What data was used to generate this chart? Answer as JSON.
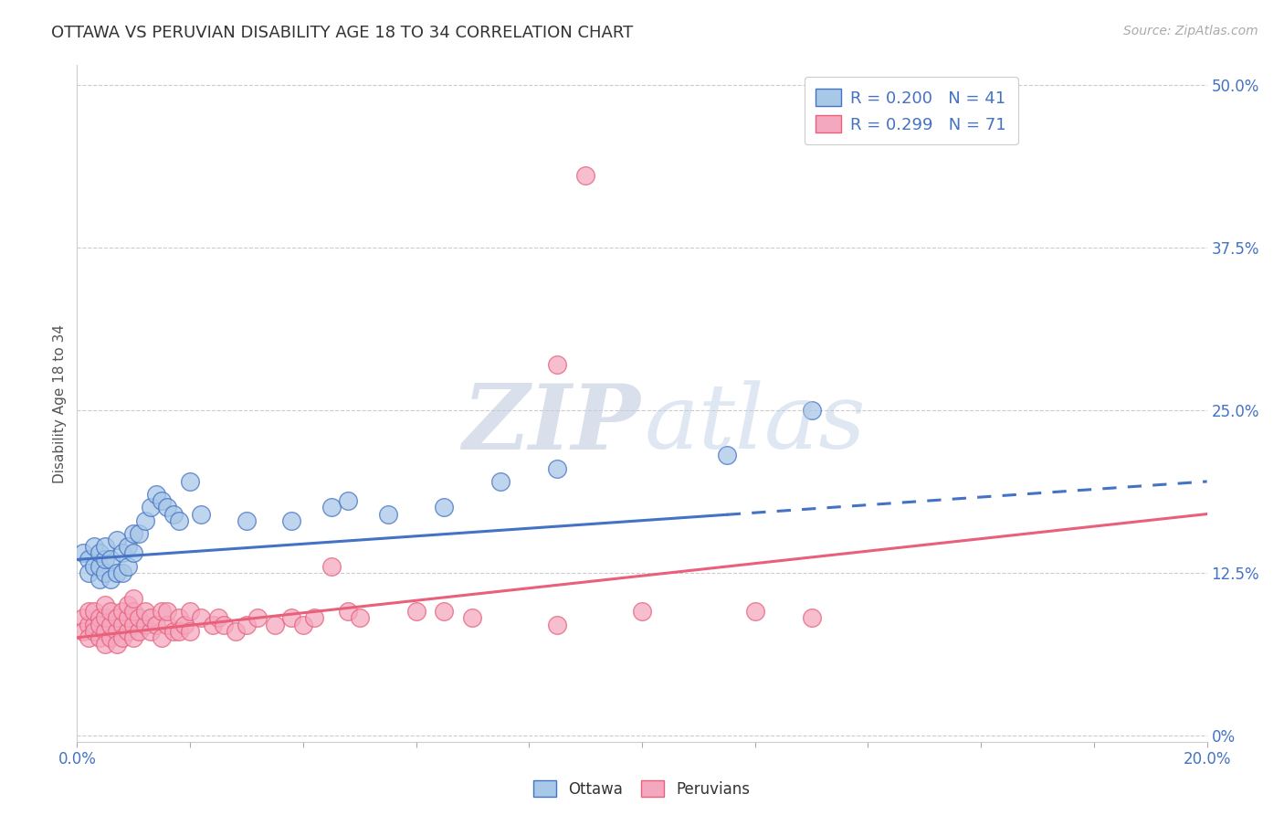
{
  "title": "OTTAWA VS PERUVIAN DISABILITY AGE 18 TO 34 CORRELATION CHART",
  "source_text": "Source: ZipAtlas.com",
  "ylabel": "Disability Age 18 to 34",
  "ylabel_right_labels": [
    "0%",
    "12.5%",
    "25.0%",
    "37.5%",
    "50.0%"
  ],
  "ylabel_right_values": [
    0.0,
    0.125,
    0.25,
    0.375,
    0.5
  ],
  "xmin": 0.0,
  "xmax": 0.2,
  "ymin": -0.005,
  "ymax": 0.515,
  "ottawa_color": "#A8C8E8",
  "peruvian_color": "#F4A8C0",
  "ottawa_line_color": "#4472C4",
  "peruvian_line_color": "#E8607A",
  "ottawa_R": 0.2,
  "ottawa_N": 41,
  "peruvian_R": 0.299,
  "peruvian_N": 71,
  "ottawa_trend_start_x": 0.0,
  "ottawa_trend_start_y": 0.135,
  "ottawa_trend_end_x": 0.2,
  "ottawa_trend_end_y": 0.195,
  "ottawa_trend_solid_end_x": 0.115,
  "peruvian_trend_start_x": 0.0,
  "peruvian_trend_start_y": 0.075,
  "peruvian_trend_end_x": 0.2,
  "peruvian_trend_end_y": 0.17,
  "ottawa_x": [
    0.001,
    0.002,
    0.002,
    0.003,
    0.003,
    0.004,
    0.004,
    0.004,
    0.005,
    0.005,
    0.005,
    0.006,
    0.006,
    0.007,
    0.007,
    0.008,
    0.008,
    0.009,
    0.009,
    0.01,
    0.01,
    0.011,
    0.012,
    0.013,
    0.014,
    0.015,
    0.016,
    0.017,
    0.018,
    0.02,
    0.022,
    0.03,
    0.038,
    0.045,
    0.048,
    0.055,
    0.065,
    0.075,
    0.085,
    0.115,
    0.13
  ],
  "ottawa_y": [
    0.14,
    0.135,
    0.125,
    0.13,
    0.145,
    0.12,
    0.13,
    0.14,
    0.125,
    0.135,
    0.145,
    0.12,
    0.135,
    0.125,
    0.15,
    0.125,
    0.14,
    0.13,
    0.145,
    0.14,
    0.155,
    0.155,
    0.165,
    0.175,
    0.185,
    0.18,
    0.175,
    0.17,
    0.165,
    0.195,
    0.17,
    0.165,
    0.165,
    0.175,
    0.18,
    0.17,
    0.175,
    0.195,
    0.205,
    0.215,
    0.25
  ],
  "peruvian_x": [
    0.001,
    0.001,
    0.002,
    0.002,
    0.002,
    0.003,
    0.003,
    0.003,
    0.004,
    0.004,
    0.004,
    0.005,
    0.005,
    0.005,
    0.005,
    0.006,
    0.006,
    0.006,
    0.007,
    0.007,
    0.007,
    0.008,
    0.008,
    0.008,
    0.009,
    0.009,
    0.009,
    0.01,
    0.01,
    0.01,
    0.01,
    0.011,
    0.011,
    0.012,
    0.012,
    0.013,
    0.013,
    0.014,
    0.015,
    0.015,
    0.016,
    0.016,
    0.017,
    0.018,
    0.018,
    0.019,
    0.02,
    0.02,
    0.022,
    0.024,
    0.025,
    0.026,
    0.028,
    0.03,
    0.032,
    0.035,
    0.038,
    0.04,
    0.042,
    0.045,
    0.048,
    0.05,
    0.06,
    0.065,
    0.07,
    0.085,
    0.1,
    0.12,
    0.13,
    0.085,
    0.09
  ],
  "peruvian_y": [
    0.09,
    0.08,
    0.085,
    0.095,
    0.075,
    0.085,
    0.095,
    0.08,
    0.09,
    0.075,
    0.085,
    0.08,
    0.09,
    0.1,
    0.07,
    0.075,
    0.085,
    0.095,
    0.08,
    0.09,
    0.07,
    0.085,
    0.095,
    0.075,
    0.08,
    0.09,
    0.1,
    0.085,
    0.095,
    0.075,
    0.105,
    0.08,
    0.09,
    0.085,
    0.095,
    0.08,
    0.09,
    0.085,
    0.095,
    0.075,
    0.085,
    0.095,
    0.08,
    0.09,
    0.08,
    0.085,
    0.095,
    0.08,
    0.09,
    0.085,
    0.09,
    0.085,
    0.08,
    0.085,
    0.09,
    0.085,
    0.09,
    0.085,
    0.09,
    0.13,
    0.095,
    0.09,
    0.095,
    0.095,
    0.09,
    0.085,
    0.095,
    0.095,
    0.09,
    0.285,
    0.43
  ]
}
